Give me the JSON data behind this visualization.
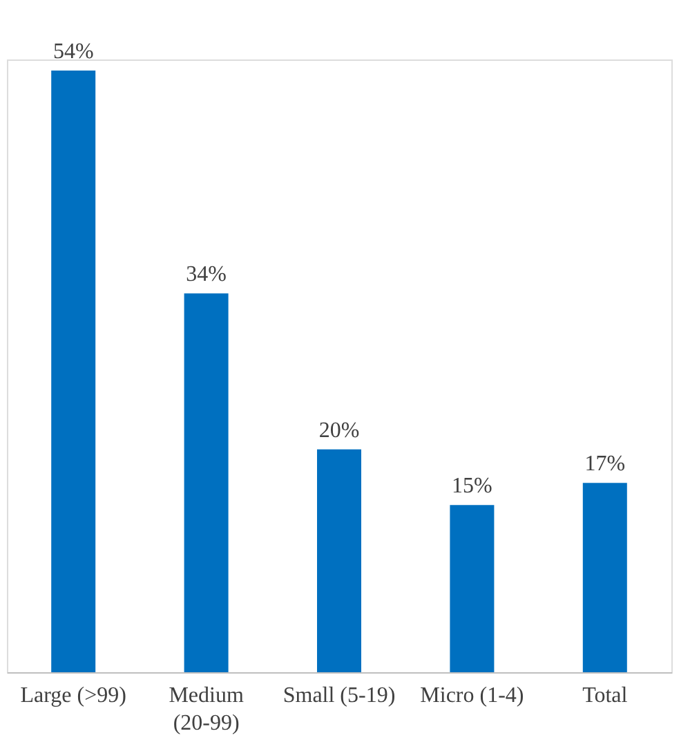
{
  "chart_data": {
    "type": "bar",
    "categories": [
      "Large (>99)",
      "Medium (20-99)",
      "Small (5-19)",
      "Micro (1-4)",
      "Total"
    ],
    "values": [
      54,
      34,
      20,
      15,
      17
    ],
    "value_labels": [
      "54%",
      "34%",
      "20%",
      "15%",
      "17%"
    ],
    "color": "#0070c0",
    "grid": false
  }
}
